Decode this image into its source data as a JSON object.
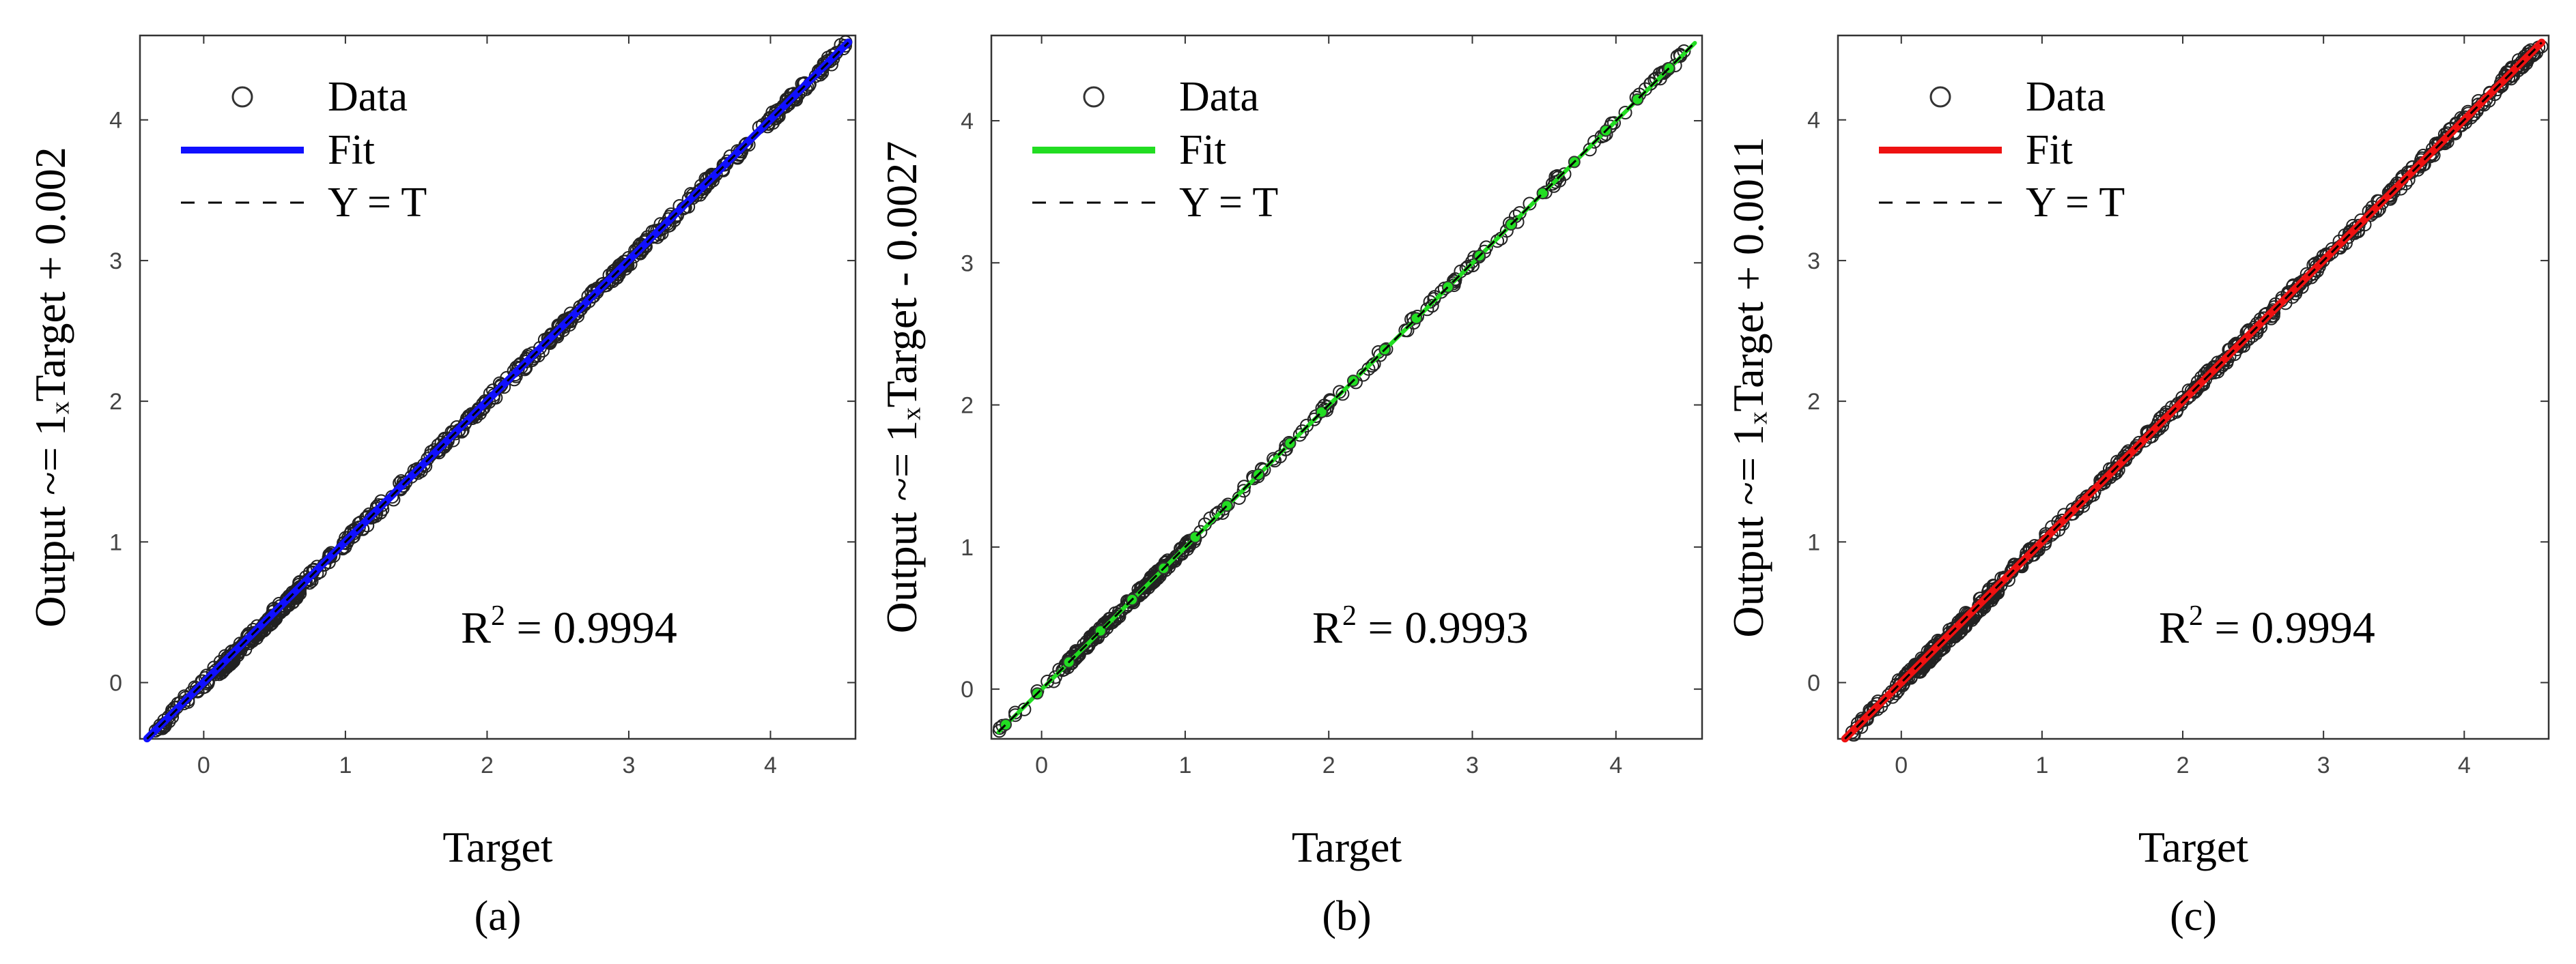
{
  "chart_data": [
    {
      "type": "scatter",
      "panel_label": "(a)",
      "xlabel": "Target",
      "ylabel": "Output ~= 1ₓTarget + 0.002",
      "fit": {
        "slope": 1,
        "intercept": 0.002,
        "color": "#1010ff"
      },
      "xlim": [
        -0.45,
        4.6
      ],
      "ylim": [
        -0.4,
        4.6
      ],
      "xticks": [
        "0",
        "1",
        "2",
        "3",
        "4"
      ],
      "yticks": [
        "0",
        "1",
        "2",
        "3",
        "4"
      ],
      "legend": {
        "data": "Data",
        "fit": "Fit",
        "yt": "Y = T",
        "position": "top-left"
      },
      "annotation": {
        "r2_prefix": "R",
        "r2_sup": "2",
        "r2_value": " = 0.9994"
      },
      "grid": false
    },
    {
      "type": "scatter",
      "panel_label": "(b)",
      "xlabel": "Target",
      "ylabel": "Output ~= 1ₓTarget - 0.0027",
      "fit": {
        "slope": 1,
        "intercept": -0.0027,
        "color": "#22dd22"
      },
      "xlim": [
        -0.35,
        4.6
      ],
      "ylim": [
        -0.35,
        4.6
      ],
      "xticks": [
        "0",
        "1",
        "2",
        "3",
        "4"
      ],
      "yticks": [
        "0",
        "1",
        "2",
        "3",
        "4"
      ],
      "legend": {
        "data": "Data",
        "fit": "Fit",
        "yt": "Y = T",
        "position": "top-left"
      },
      "annotation": {
        "r2_prefix": "R",
        "r2_sup": "2",
        "r2_value": " = 0.9993"
      },
      "grid": false
    },
    {
      "type": "scatter",
      "panel_label": "(c)",
      "xlabel": "Target",
      "ylabel": "Output ~= 1ₓTarget + 0.0011",
      "fit": {
        "slope": 1,
        "intercept": 0.0011,
        "color": "#ee1111"
      },
      "xlim": [
        -0.45,
        4.6
      ],
      "ylim": [
        -0.4,
        4.6
      ],
      "xticks": [
        "0",
        "1",
        "2",
        "3",
        "4"
      ],
      "yticks": [
        "0",
        "1",
        "2",
        "3",
        "4"
      ],
      "legend": {
        "data": "Data",
        "fit": "Fit",
        "yt": "Y = T",
        "position": "top-left"
      },
      "annotation": {
        "r2_prefix": "R",
        "r2_sup": "2",
        "r2_value": " = 0.9994"
      },
      "grid": false
    }
  ]
}
